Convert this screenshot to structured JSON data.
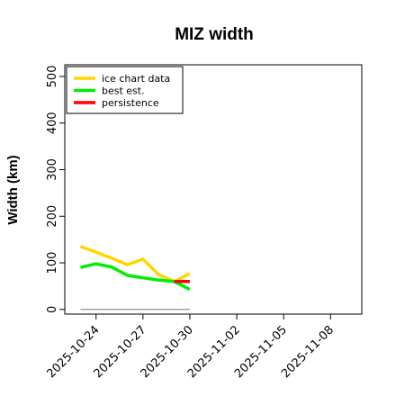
{
  "chart_data": {
    "type": "line",
    "title": "MIZ width",
    "xlabel": "",
    "ylabel": "Width (km)",
    "x_axis": {
      "type": "date",
      "range": [
        "2025-10-22",
        "2025-11-10"
      ],
      "ticks": [
        "2025-10-24",
        "2025-10-27",
        "2025-10-30",
        "2025-11-02",
        "2025-11-05",
        "2025-11-08"
      ]
    },
    "y_axis": {
      "range": [
        -10,
        525
      ],
      "ticks": [
        0,
        100,
        200,
        300,
        400,
        500
      ]
    },
    "grid": false,
    "legend": {
      "placement": "top-left",
      "entries": [
        {
          "label": "ice chart data",
          "color": "#FFD700"
        },
        {
          "label": "best est.",
          "color": "#00EE00"
        },
        {
          "label": "persistence",
          "color": "#FF0000"
        }
      ]
    },
    "series": [
      {
        "name": "ice chart data",
        "color": "#FFD700",
        "x": [
          "2025-10-23",
          "2025-10-24",
          "2025-10-25",
          "2025-10-26",
          "2025-10-27",
          "2025-10-28",
          "2025-10-29",
          "2025-10-30"
        ],
        "y": [
          135,
          123,
          110,
          96,
          108,
          75,
          60,
          77
        ]
      },
      {
        "name": "best est.",
        "color": "#00EE00",
        "x": [
          "2025-10-23",
          "2025-10-24",
          "2025-10-25",
          "2025-10-26",
          "2025-10-27",
          "2025-10-28",
          "2025-10-29",
          "2025-10-30"
        ],
        "y": [
          90,
          98,
          91,
          73,
          68,
          63,
          60,
          43
        ]
      },
      {
        "name": "persistence",
        "color": "#FF0000",
        "x": [
          "2025-10-29",
          "2025-10-30"
        ],
        "y": [
          60,
          60
        ]
      },
      {
        "name": "",
        "color": "#808080",
        "x": [
          "2025-10-23",
          "2025-10-30"
        ],
        "y": [
          0,
          0
        ]
      }
    ]
  }
}
